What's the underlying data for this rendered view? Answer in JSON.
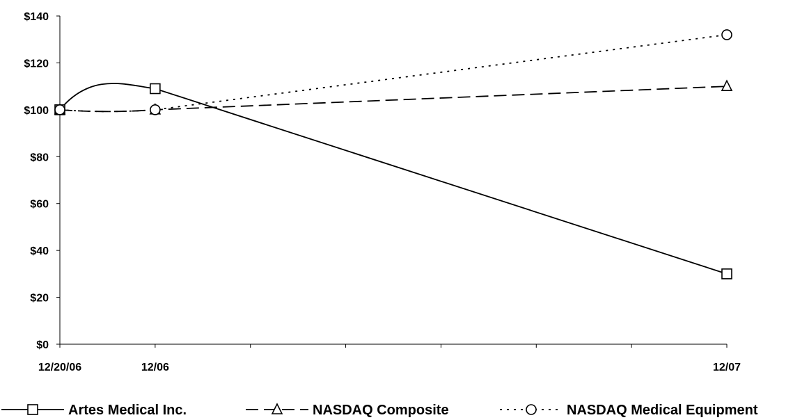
{
  "chart_data": {
    "type": "line",
    "title": "",
    "xlabel": "",
    "ylabel": "",
    "x": [
      "12/20/06",
      "12/06",
      "12/07"
    ],
    "x_positions": [
      0,
      1,
      7
    ],
    "x_range": [
      0,
      7
    ],
    "x_minor_ticks": [
      0,
      1,
      2,
      3,
      4,
      5,
      6,
      7
    ],
    "ylim": [
      0,
      140
    ],
    "y_ticks": [
      0,
      20,
      40,
      60,
      80,
      100,
      120,
      140
    ],
    "y_tick_labels": [
      "$0",
      "$20",
      "$40",
      "$60",
      "$80",
      "$100",
      "$120",
      "$140"
    ],
    "grid": false,
    "legend_position": "bottom",
    "series": [
      {
        "name": "Artes Medical Inc.",
        "values": [
          100,
          109,
          30
        ],
        "style": "solid",
        "marker": "square",
        "color": "#000000"
      },
      {
        "name": "NASDAQ Composite",
        "values": [
          100,
          100,
          110
        ],
        "style": "dashed",
        "marker": "triangle",
        "color": "#000000"
      },
      {
        "name": "NASDAQ Medical Equipment",
        "values": [
          100,
          100,
          132
        ],
        "style": "dotted",
        "marker": "circle",
        "color": "#000000"
      }
    ]
  }
}
